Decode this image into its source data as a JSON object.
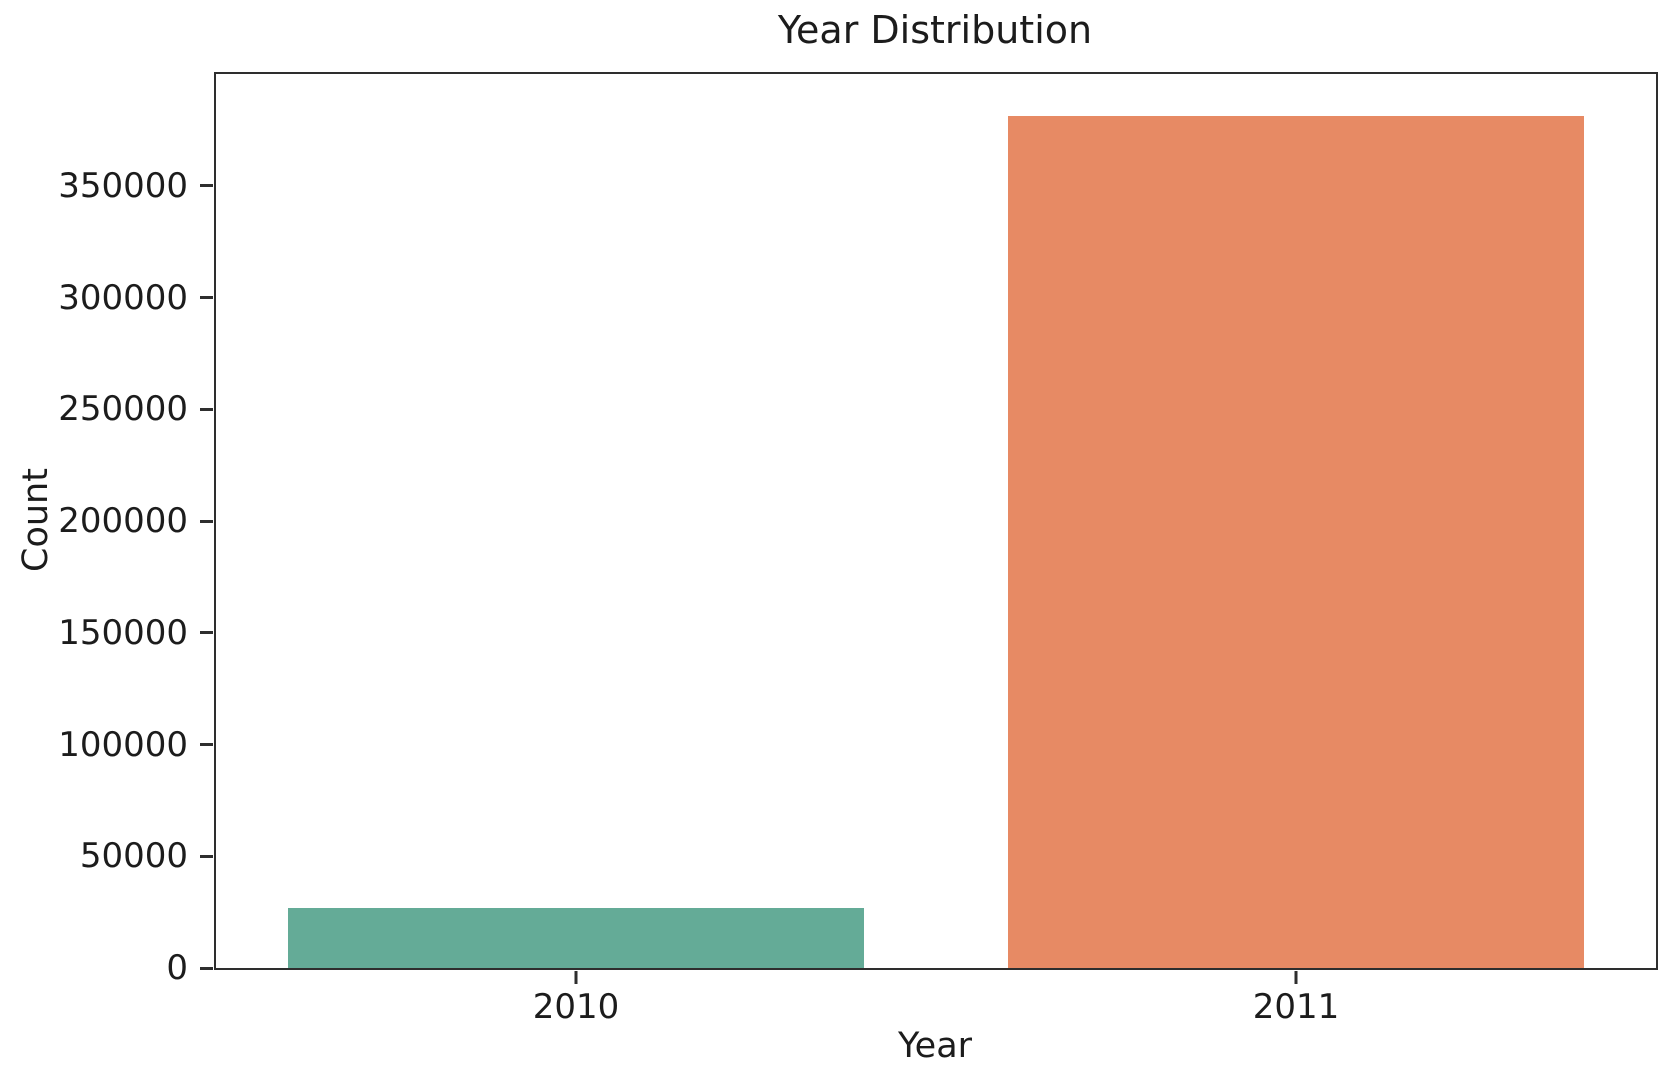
{
  "figure": {
    "background": "#ffffff",
    "frame_color": "#2e2e2e",
    "text_color": "#1c1c1c"
  },
  "chart_data": {
    "type": "bar",
    "title": "Year Distribution",
    "xlabel": "Year",
    "ylabel": "Count",
    "categories": [
      "2010",
      "2011"
    ],
    "values": [
      27000,
      381000
    ],
    "bar_colors": [
      "#64ab97",
      "#e78a64"
    ],
    "bar_width_fraction": 0.8,
    "ylim": [
      0,
      400000
    ],
    "yticks": [
      0,
      50000,
      100000,
      150000,
      200000,
      250000,
      300000,
      350000
    ],
    "ytick_labels": [
      "0",
      "50000",
      "100000",
      "150000",
      "200000",
      "250000",
      "300000",
      "350000"
    ],
    "grid": false,
    "legend_visible": false
  }
}
